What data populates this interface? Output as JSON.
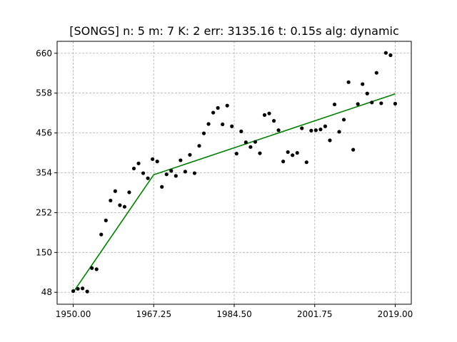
{
  "chart_data": {
    "type": "scatter",
    "title": "[SONGS] n: 5 m: 7 K: 2 err: 3135.16 t: 0.15s alg: dynamic",
    "xlabel": "",
    "ylabel": "",
    "xlim": [
      1946.55,
      2022.45
    ],
    "ylim": [
      17.4,
      690.6
    ],
    "grid": true,
    "x_ticks": [
      1950.0,
      1967.25,
      1984.5,
      2001.75,
      2019.0
    ],
    "x_tick_labels": [
      "1950.00",
      "1967.25",
      "1984.50",
      "2001.75",
      "2019.00"
    ],
    "y_ticks": [
      48,
      150,
      252,
      354,
      456,
      558,
      660
    ],
    "y_tick_labels": [
      "48",
      "150",
      "252",
      "354",
      "456",
      "558",
      "660"
    ],
    "series": [
      {
        "type": "scatter",
        "color": "#000000",
        "points": [
          [
            1950,
            51
          ],
          [
            1951,
            57
          ],
          [
            1952,
            58
          ],
          [
            1953,
            50
          ],
          [
            1954,
            110
          ],
          [
            1955,
            107
          ],
          [
            1956,
            196
          ],
          [
            1957,
            232
          ],
          [
            1958,
            283
          ],
          [
            1959,
            307
          ],
          [
            1960,
            271
          ],
          [
            1961,
            267
          ],
          [
            1962,
            304
          ],
          [
            1963,
            365
          ],
          [
            1964,
            378
          ],
          [
            1965,
            353
          ],
          [
            1966,
            340
          ],
          [
            1967,
            389
          ],
          [
            1968,
            383
          ],
          [
            1969,
            318
          ],
          [
            1970,
            350
          ],
          [
            1971,
            359
          ],
          [
            1972,
            346
          ],
          [
            1973,
            386
          ],
          [
            1974,
            357
          ],
          [
            1975,
            400
          ],
          [
            1976,
            353
          ],
          [
            1977,
            423
          ],
          [
            1978,
            455
          ],
          [
            1979,
            479
          ],
          [
            1980,
            508
          ],
          [
            1981,
            520
          ],
          [
            1982,
            478
          ],
          [
            1983,
            526
          ],
          [
            1984,
            473
          ],
          [
            1985,
            403
          ],
          [
            1986,
            460
          ],
          [
            1987,
            432
          ],
          [
            1988,
            420
          ],
          [
            1989,
            433
          ],
          [
            1990,
            404
          ],
          [
            1991,
            502
          ],
          [
            1992,
            506
          ],
          [
            1993,
            487
          ],
          [
            1994,
            463
          ],
          [
            1995,
            383
          ],
          [
            1996,
            407
          ],
          [
            1997,
            399
          ],
          [
            1998,
            405
          ],
          [
            1999,
            468
          ],
          [
            2000,
            381
          ],
          [
            2001,
            462
          ],
          [
            2002,
            463
          ],
          [
            2003,
            465
          ],
          [
            2004,
            473
          ],
          [
            2005,
            437
          ],
          [
            2006,
            529
          ],
          [
            2007,
            459
          ],
          [
            2008,
            490
          ],
          [
            2009,
            586
          ],
          [
            2010,
            413
          ],
          [
            2011,
            530
          ],
          [
            2012,
            581
          ],
          [
            2013,
            557
          ],
          [
            2014,
            534
          ],
          [
            2015,
            610
          ],
          [
            2016,
            532
          ],
          [
            2017,
            661
          ],
          [
            2018,
            655
          ],
          [
            2019,
            531
          ]
        ]
      },
      {
        "type": "line",
        "color": "#008000",
        "points": [
          [
            1950,
            48
          ],
          [
            1967.25,
            349
          ],
          [
            2019,
            556
          ]
        ]
      }
    ]
  }
}
